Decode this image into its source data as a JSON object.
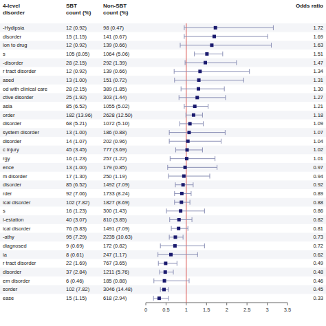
{
  "chart_data": {
    "type": "forest",
    "columns": [
      {
        "header": [
          "4-level",
          "disorder"
        ],
        "cells": [
          "-Hydipsia",
          "disorder",
          "ion to drug",
          "s",
          "-disorder",
          "r tract disorder",
          "ased",
          "od with clinical care",
          "ctive disorder",
          "asia",
          "order",
          "disorder",
          "system disorder",
          "disorder",
          "c injury",
          "rgy",
          "ence",
          "m disorder",
          "disorder",
          "rder",
          "ical disorder",
          "s",
          "i-estation",
          "ical disorder",
          "-athy",
          "diagnosed",
          "ia",
          "r tract disorder",
          "disorder",
          "em disorder",
          "sorder",
          "ease"
        ]
      },
      {
        "header": [
          "SBT",
          "count (%)"
        ],
        "cells": [
          "12 (0.92)",
          "15 (1.15)",
          "12 (0.92)",
          "105 (8.05)",
          "28 (2.15)",
          "12 (0.92)",
          "13 (1.00)",
          "28 (2.15)",
          "25 (1.92)",
          "85 (6.52)",
          "182 (13.96)",
          "68 (5.21)",
          "13 (1.00)",
          "14 (1.07)",
          "45 (3.45)",
          "16 (1.23)",
          "13 (1.00)",
          "17 (1.30)",
          "85 (6.52)",
          "92 (7.06)",
          "102 (7.82)",
          "16 (1.23)",
          "40 (3.07)",
          "76 (5.83)",
          "95 (7.29)",
          "9 (0.69)",
          "8 (0.61)",
          "22 (1.69)",
          "37 (2.84)",
          "6 (0.46)",
          "102 (7.82)",
          "15 (1.15)"
        ]
      },
      {
        "header": [
          "Non-SBT",
          "count (%)"
        ],
        "cells": [
          "98 (0.47)",
          "141 (0.67)",
          "139 (0.66)",
          "1064 (5.06)",
          "292 (1.39)",
          "139 (0.66)",
          "151 (0.72)",
          "389 (1.85)",
          "303 (1.44)",
          "1055 (5.02)",
          "2628 (12.50)",
          "1072 (5.10)",
          "186 (0.88)",
          "202 (0.96)",
          "777 (3.69)",
          "257 (1.22)",
          "179 (0.85)",
          "250 (1.19)",
          "1492 (7.09)",
          "1733 (8.24)",
          "1827 (8.69)",
          "300 (1.43)",
          "810 (3.85)",
          "1491 (7.09)",
          "2235 (10.63)",
          "172 (0.82)",
          "247 (1.17)",
          "767 (3.65)",
          "1211 (5.76)",
          "185 (0.88)",
          "3046 (14.48)",
          "618 (2.94)"
        ]
      }
    ],
    "series": [
      {
        "name": "Odds ratio",
        "color": "#1a1a6e",
        "values": [
          1.72,
          1.69,
          1.63,
          1.51,
          1.47,
          1.34,
          1.31,
          1.3,
          1.27,
          1.21,
          1.18,
          1.09,
          1.07,
          1.04,
          1.02,
          1.01,
          0.97,
          0.94,
          0.92,
          0.89,
          0.88,
          0.86,
          0.82,
          0.81,
          0.73,
          0.72,
          0.62,
          0.49,
          0.48,
          0.46,
          0.45,
          0.33
        ],
        "value_labels": [
          "1.72",
          "1.69",
          "1.63",
          "1.51",
          "1.47",
          "1.34",
          "1.31",
          "1.30",
          "1.27",
          "1.21",
          "1.18",
          "1.09",
          "1.07",
          "1.04",
          "1.02",
          "1.01",
          "0.97",
          "0.94",
          "0.92",
          "0.89",
          "0.88",
          "0.86",
          "0.82",
          "0.81",
          "0.73",
          "0.72",
          "0.62",
          "0.49",
          "0.48",
          "0.46",
          "0.45",
          "0.33"
        ],
        "ci_lo": [
          0.95,
          0.95,
          0.85,
          1.2,
          0.97,
          0.7,
          0.71,
          0.87,
          0.82,
          0.95,
          0.99,
          0.84,
          0.58,
          0.58,
          0.74,
          0.6,
          0.54,
          0.56,
          0.73,
          0.71,
          0.71,
          0.51,
          0.59,
          0.63,
          0.58,
          0.36,
          0.3,
          0.31,
          0.34,
          0.2,
          0.36,
          0.19
        ],
        "ci_hi": [
          3.15,
          3.01,
          3.1,
          1.9,
          2.24,
          2.56,
          2.42,
          1.94,
          1.97,
          1.54,
          1.4,
          1.42,
          1.96,
          1.86,
          1.4,
          1.71,
          1.76,
          1.58,
          1.17,
          1.12,
          1.09,
          1.45,
          1.14,
          1.04,
          0.92,
          1.45,
          1.28,
          0.77,
          0.68,
          1.07,
          0.56,
          0.56
        ]
      }
    ],
    "reference_line": 1.0,
    "xlim": [
      0,
      3.5
    ],
    "xticks": [
      0,
      0.5,
      1,
      1.5,
      2,
      2.5,
      3,
      3.5
    ]
  }
}
